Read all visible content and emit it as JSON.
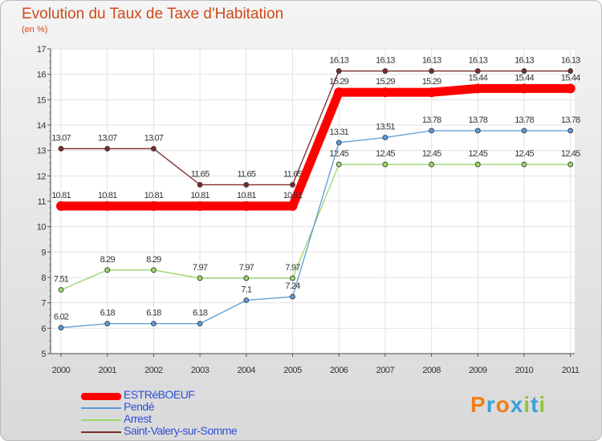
{
  "header": {
    "title": "Evolution du Taux de Taxe d'Habitation",
    "subtitle": "(en %)"
  },
  "brand": {
    "letters": [
      "P",
      "r",
      "o",
      "x",
      "i",
      "t",
      "i"
    ],
    "colors": [
      "#f07f1a",
      "#3aa0d8",
      "#f07f1a",
      "#3aa0d8",
      "#8dc63f",
      "#3aa0d8",
      "#8dc63f"
    ]
  },
  "chart_data": {
    "type": "line",
    "categories": [
      "2000",
      "2001",
      "2002",
      "2003",
      "2004",
      "2005",
      "2006",
      "2007",
      "2008",
      "2009",
      "2010",
      "2011"
    ],
    "ylim": [
      5,
      17
    ],
    "yticks": [
      "5",
      "6",
      "7",
      "8",
      "9",
      "10",
      "11",
      "12",
      "13",
      "14",
      "15",
      "16",
      "17"
    ],
    "grid": true,
    "legend_position": "bottom-left",
    "series": [
      {
        "name": "Saint-Valery-sur-Somme",
        "color": "#7b2b2b",
        "values": [
          13.07,
          13.07,
          13.07,
          11.65,
          11.65,
          11.65,
          16.13,
          16.13,
          16.13,
          16.13,
          16.13,
          16.13
        ],
        "labels": [
          "13.07",
          "13.07",
          "13.07",
          "11.65",
          "11.65",
          "11.65",
          "16.13",
          "16.13",
          "16.13",
          "16.13",
          "16.13",
          "16.13"
        ]
      },
      {
        "name": "Arrest",
        "color": "#9ad86a",
        "values": [
          7.51,
          8.29,
          8.29,
          7.97,
          7.97,
          7.97,
          12.45,
          12.45,
          12.45,
          12.45,
          12.45,
          12.45
        ],
        "labels": [
          "7.51",
          "8.29",
          "8.29",
          "7.97",
          "7.97",
          "7.97",
          "12.45",
          "12.45",
          "12.45",
          "12.45",
          "12.45",
          "12.45"
        ]
      },
      {
        "name": "Pendé",
        "color": "#5b9bd5",
        "values": [
          6.02,
          6.18,
          6.18,
          6.18,
          7.1,
          7.24,
          13.31,
          13.51,
          13.78,
          13.78,
          13.78,
          13.78
        ],
        "labels": [
          "6.02",
          "6.18",
          "6.18",
          "6.18",
          "7.1",
          "7.24",
          "13.31",
          "13.51",
          "13.78",
          "13.78",
          "13.78",
          "13.78"
        ]
      },
      {
        "name": "ESTRéBOEUF",
        "color": "#ff0000",
        "values": [
          10.81,
          10.81,
          10.81,
          10.81,
          10.81,
          10.81,
          15.29,
          15.29,
          15.29,
          15.44,
          15.44,
          15.44
        ],
        "labels": [
          "10.81",
          "10.81",
          "10.81",
          "10.81",
          "10.81",
          "10.81",
          "15.29",
          "15.29",
          "15.29",
          "15.44",
          "15.44",
          "15.44"
        ]
      }
    ],
    "legend_order": [
      "ESTRéBOEUF",
      "Pendé",
      "Arrest",
      "Saint-Valery-sur-Somme"
    ]
  }
}
